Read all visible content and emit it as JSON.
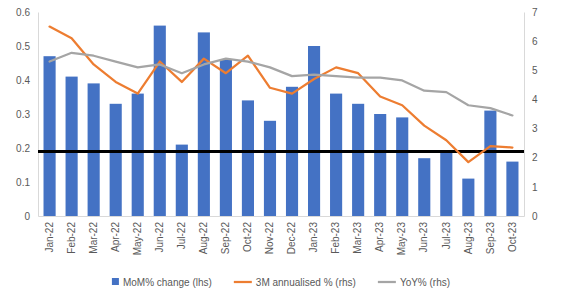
{
  "chart_data": {
    "type": "bar",
    "categories": [
      "Jan-22",
      "Feb-22",
      "Mar-22",
      "Apr-22",
      "May-22",
      "Jun-22",
      "Jul-22",
      "Aug-22",
      "Sep-22",
      "Oct-22",
      "Nov-22",
      "Dec-22",
      "Jan-23",
      "Feb-23",
      "Mar-23",
      "Apr-23",
      "May-23",
      "Jun-23",
      "Jul-23",
      "Aug-23",
      "Sep-23",
      "Oct-23"
    ],
    "series": [
      {
        "name": "MoM% change (lhs)",
        "type": "bar",
        "color": "#4472c4",
        "values": [
          0.47,
          0.41,
          0.39,
          0.33,
          0.36,
          0.56,
          0.21,
          0.54,
          0.46,
          0.34,
          0.28,
          0.38,
          0.5,
          0.36,
          0.33,
          0.3,
          0.29,
          0.17,
          0.19,
          0.11,
          0.31,
          0.16
        ]
      },
      {
        "name": "3M annualised % (rhs)",
        "type": "line",
        "axis": "y2",
        "color": "#ed7d31",
        "values": [
          6.5,
          6.1,
          5.2,
          4.6,
          4.2,
          5.3,
          4.6,
          5.4,
          4.9,
          5.5,
          4.4,
          4.2,
          4.7,
          5.1,
          4.9,
          4.1,
          3.8,
          3.1,
          2.6,
          1.85,
          2.4,
          2.35
        ]
      },
      {
        "name": "YoY% (rhs)",
        "type": "line",
        "axis": "y2",
        "color": "#a5a5a5",
        "values": [
          5.3,
          5.6,
          5.5,
          5.3,
          5.1,
          5.2,
          4.9,
          5.2,
          5.4,
          5.3,
          5.1,
          4.8,
          4.85,
          4.8,
          4.75,
          4.75,
          4.65,
          4.3,
          4.25,
          3.8,
          3.7,
          3.45
        ]
      }
    ],
    "reference_line": {
      "value": 0.19,
      "color": "#000000"
    },
    "ylim": [
      0,
      0.6
    ],
    "yticks": [
      0,
      0.1,
      0.2,
      0.3,
      0.4,
      0.5,
      0.6
    ],
    "y2lim": [
      0,
      7
    ],
    "y2ticks": [
      0,
      1,
      2,
      3,
      4,
      5,
      6,
      7
    ],
    "grid": false,
    "legend": "bottom"
  }
}
